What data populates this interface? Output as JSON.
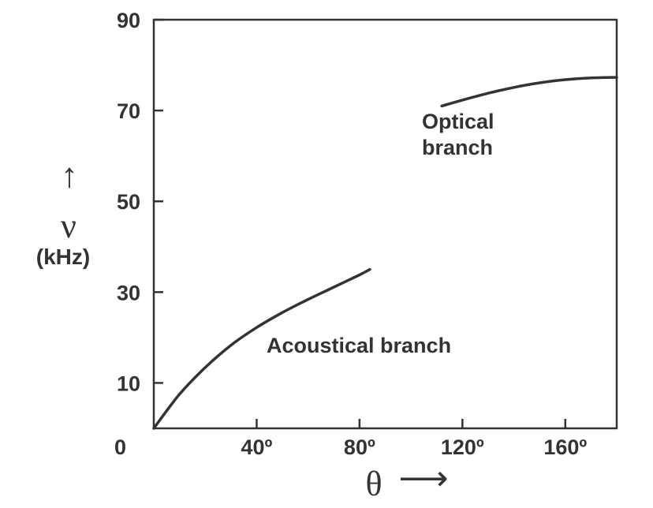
{
  "chart_data": {
    "type": "line",
    "x_unit_suffix": "º",
    "xlim": [
      0,
      180
    ],
    "ylim": [
      0,
      90
    ],
    "x_ticks": [
      40,
      80,
      120,
      160
    ],
    "y_ticks": [
      0,
      10,
      30,
      50,
      70,
      90
    ],
    "origin_label": "0",
    "ylabel_symbol": "ν",
    "ylabel_unit": "(kHz)",
    "ylabel_arrow": "↑",
    "xlabel_symbol": "θ",
    "xlabel_arrow": "⟶",
    "series": [
      {
        "name": "Acoustical branch",
        "x": [
          0,
          10,
          20,
          30,
          40,
          50,
          60,
          70,
          80,
          84
        ],
        "y": [
          0,
          7.5,
          13.4,
          18.3,
          22.2,
          25.5,
          28.4,
          31.1,
          33.8,
          35
        ]
      },
      {
        "name": "Optical branch",
        "x": [
          112,
          120,
          130,
          140,
          150,
          160,
          170,
          180
        ],
        "y": [
          71,
          72.3,
          73.8,
          75.1,
          76.1,
          76.8,
          77.2,
          77.3
        ]
      }
    ],
    "annotations": [
      {
        "text": "Acoustical branch"
      },
      {
        "text_line1": "Optical",
        "text_line2": "branch"
      }
    ],
    "grid": false,
    "line_color": "#333333"
  }
}
